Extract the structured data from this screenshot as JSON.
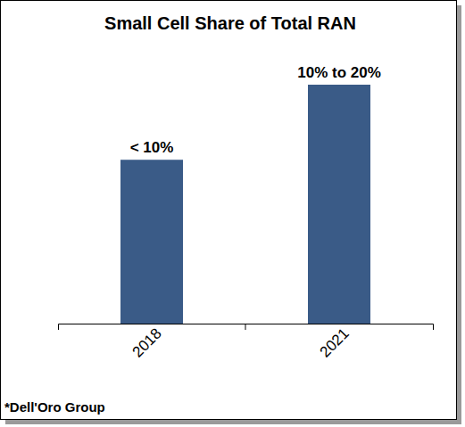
{
  "chart_data": {
    "type": "bar",
    "title": "Small Cell Share of Total RAN",
    "categories": [
      "2018",
      "2021"
    ],
    "values": [
      9.6,
      14
    ],
    "value_labels": [
      "< 10%",
      "10% to 20%"
    ],
    "data_labels": true,
    "color": "#3a5b87",
    "tick_labels": "x",
    "grid": false,
    "source": "*Dell'Oro Group"
  }
}
